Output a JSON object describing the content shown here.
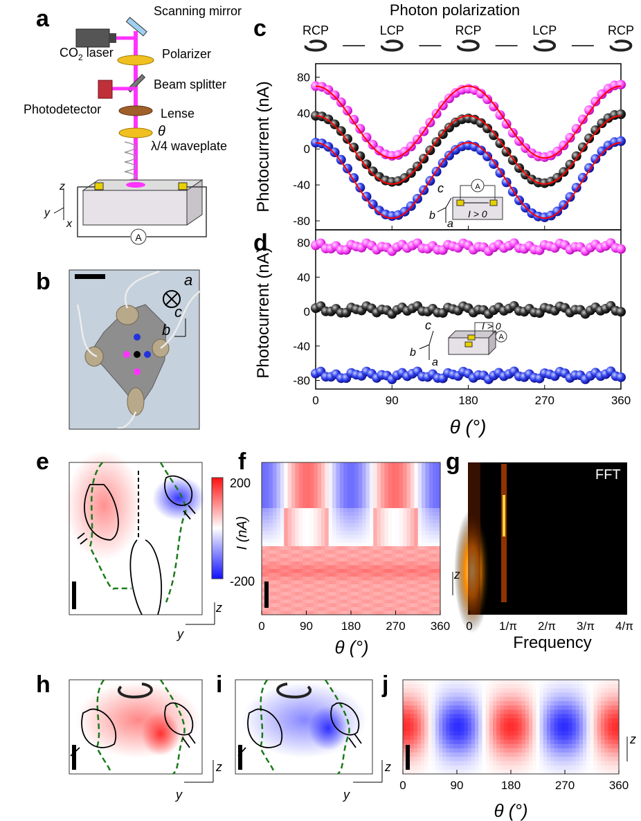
{
  "panels": {
    "a": {
      "label": "a",
      "components": [
        "Scanning mirror",
        "CO",
        "2",
        " laser",
        "Polarizer",
        "Beam splitter",
        "Photodetector",
        "Lense",
        "θ",
        "λ/4 waveplate"
      ],
      "axes": [
        "z",
        "y",
        "x"
      ],
      "ammeter": "A"
    },
    "b": {
      "label": "b",
      "axes": [
        "a",
        "c",
        "b"
      ]
    },
    "c": {
      "label": "c",
      "header": "Photon polarization",
      "pol_labels": [
        "RCP",
        "LCP",
        "RCP",
        "LCP",
        "RCP"
      ],
      "inset": [
        "c",
        "b",
        "a",
        "A",
        "I > 0"
      ]
    },
    "d": {
      "label": "d",
      "inset": [
        "c",
        "b",
        "a",
        "I > 0",
        "A"
      ]
    },
    "e": {
      "label": "e",
      "axes": [
        "z",
        "y"
      ]
    },
    "f": {
      "label": "f",
      "colorbar_ticks": [
        "200",
        "-200"
      ],
      "colorbar_label": "I (nA)",
      "axis_z": "z"
    },
    "g": {
      "label": "g",
      "tag": "FFT",
      "xlabel": "Frequency"
    },
    "h": {
      "label": "h",
      "axes": [
        "z",
        "y"
      ]
    },
    "i": {
      "label": "i",
      "axes": [
        "z",
        "y"
      ]
    },
    "j": {
      "label": "j",
      "axis_z": "z"
    }
  },
  "colors": {
    "pink": "#ff33ff",
    "black": "#222222",
    "blue": "#2233dd",
    "fit": "#ff0000",
    "green": "#1a7a1a"
  },
  "chart_data": [
    {
      "type": "scatter",
      "panel": "c",
      "ylabel": "Photocurrent (nA)",
      "xlim": [
        0,
        360
      ],
      "ylim": [
        -90,
        95
      ],
      "xticks": [
        0,
        90,
        180,
        270,
        360
      ],
      "yticks": [
        -80,
        -40,
        0,
        40,
        80
      ],
      "series": [
        {
          "color": "pink",
          "offset": 30,
          "amp": 40
        },
        {
          "color": "black",
          "offset": -1,
          "amp": 38
        },
        {
          "color": "blue",
          "offset": -35,
          "amp": 42
        }
      ],
      "points_theta_step": 7.5
    },
    {
      "type": "scatter",
      "panel": "d",
      "ylabel": "Photocurrent (nA)",
      "xlabel": "θ (°)",
      "xlim": [
        0,
        360
      ],
      "ylim": [
        -90,
        95
      ],
      "xticks": [
        0,
        90,
        180,
        270,
        360
      ],
      "yticks": [
        -80,
        -40,
        0,
        40,
        80
      ],
      "series": [
        {
          "color": "pink",
          "level": 75
        },
        {
          "color": "black",
          "level": 2
        },
        {
          "color": "blue",
          "level": -74
        }
      ]
    },
    {
      "type": "heatmap",
      "panel": "f",
      "xlabel": "θ (°)",
      "xticks": [
        0,
        90,
        180,
        270,
        360
      ]
    },
    {
      "type": "heatmap",
      "panel": "g",
      "xticks": [
        "0",
        "1/π",
        "2/π",
        "3/π",
        "4/π"
      ]
    },
    {
      "type": "heatmap",
      "panel": "j",
      "xlabel": "θ (°)",
      "xticks": [
        0,
        90,
        180,
        270,
        360
      ]
    }
  ]
}
